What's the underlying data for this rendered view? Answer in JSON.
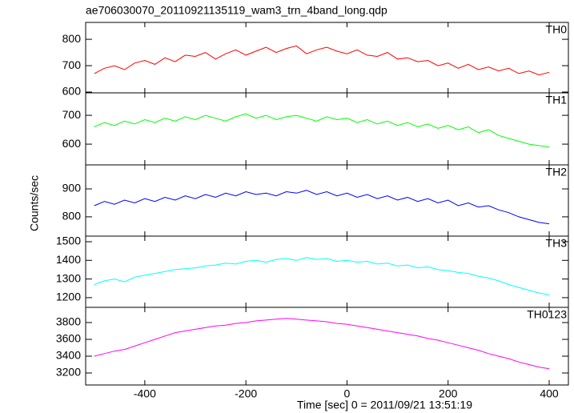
{
  "title": "ae706030070_20110921135119_wam3_trn_4band_long.qdp",
  "x_label": "Time [sec] 0 = 2011/09/21 13:51:19",
  "y_label": "Counts/sec",
  "chart_data": [
    {
      "type": "line",
      "xlim": [
        -517,
        438
      ],
      "xticks": [
        -400,
        -200,
        0,
        200,
        400
      ],
      "ylim": [
        597,
        864
      ],
      "yticks": [
        600,
        700,
        800
      ],
      "x": [
        -500,
        -480,
        -460,
        -440,
        -420,
        -400,
        -380,
        -360,
        -340,
        -320,
        -300,
        -280,
        -260,
        -240,
        -220,
        -200,
        -180,
        -160,
        -140,
        -120,
        -100,
        -80,
        -60,
        -40,
        -20,
        0,
        20,
        40,
        60,
        80,
        100,
        120,
        140,
        160,
        180,
        200,
        220,
        240,
        260,
        280,
        300,
        320,
        340,
        360,
        380,
        400
      ],
      "series": [
        {
          "name": "TH0",
          "color": "#ff0000",
          "values": [
            670,
            690,
            700,
            685,
            710,
            720,
            705,
            730,
            715,
            740,
            735,
            750,
            725,
            745,
            760,
            740,
            755,
            770,
            750,
            765,
            775,
            745,
            760,
            770,
            755,
            745,
            760,
            740,
            735,
            750,
            725,
            730,
            715,
            720,
            700,
            710,
            690,
            705,
            685,
            695,
            680,
            690,
            670,
            680,
            665,
            675
          ]
        }
      ]
    },
    {
      "type": "line",
      "xlim": [
        -517,
        438
      ],
      "xticks": [
        -400,
        -200,
        0,
        200,
        400
      ],
      "ylim": [
        528,
        778
      ],
      "yticks": [
        600,
        700
      ],
      "x": [
        -500,
        -480,
        -460,
        -440,
        -420,
        -400,
        -380,
        -360,
        -340,
        -320,
        -300,
        -280,
        -260,
        -240,
        -220,
        -200,
        -180,
        -160,
        -140,
        -120,
        -100,
        -80,
        -60,
        -40,
        -20,
        0,
        20,
        40,
        60,
        80,
        100,
        120,
        140,
        160,
        180,
        200,
        220,
        240,
        260,
        280,
        300,
        320,
        340,
        360,
        380,
        400
      ],
      "series": [
        {
          "name": "TH1",
          "color": "#00ff00",
          "values": [
            660,
            675,
            665,
            680,
            670,
            685,
            675,
            690,
            680,
            695,
            685,
            700,
            690,
            680,
            695,
            705,
            690,
            700,
            685,
            695,
            700,
            690,
            680,
            695,
            685,
            690,
            675,
            685,
            670,
            680,
            665,
            675,
            660,
            670,
            655,
            665,
            650,
            660,
            640,
            650,
            630,
            620,
            610,
            600,
            595,
            590
          ]
        }
      ]
    },
    {
      "type": "line",
      "xlim": [
        -517,
        438
      ],
      "xticks": [
        -400,
        -200,
        0,
        200,
        400
      ],
      "ylim": [
        731,
        986
      ],
      "yticks": [
        800,
        900
      ],
      "x": [
        -500,
        -480,
        -460,
        -440,
        -420,
        -400,
        -380,
        -360,
        -340,
        -320,
        -300,
        -280,
        -260,
        -240,
        -220,
        -200,
        -180,
        -160,
        -140,
        -120,
        -100,
        -80,
        -60,
        -40,
        -20,
        0,
        20,
        40,
        60,
        80,
        100,
        120,
        140,
        160,
        180,
        200,
        220,
        240,
        260,
        280,
        300,
        320,
        340,
        360,
        380,
        400
      ],
      "series": [
        {
          "name": "TH2",
          "color": "#0000ff",
          "values": [
            840,
            855,
            845,
            860,
            850,
            865,
            855,
            870,
            860,
            875,
            865,
            880,
            870,
            885,
            875,
            890,
            880,
            885,
            875,
            890,
            885,
            895,
            880,
            890,
            875,
            885,
            870,
            880,
            865,
            875,
            860,
            870,
            855,
            865,
            850,
            860,
            840,
            850,
            835,
            840,
            825,
            815,
            800,
            790,
            780,
            775
          ]
        }
      ]
    },
    {
      "type": "line",
      "xlim": [
        -517,
        438
      ],
      "xticks": [
        -400,
        -200,
        0,
        200,
        400
      ],
      "ylim": [
        1148,
        1530
      ],
      "yticks": [
        1200,
        1300,
        1400,
        1500
      ],
      "x": [
        -500,
        -480,
        -460,
        -440,
        -420,
        -400,
        -380,
        -360,
        -340,
        -320,
        -300,
        -280,
        -260,
        -240,
        -220,
        -200,
        -180,
        -160,
        -140,
        -120,
        -100,
        -80,
        -60,
        -40,
        -20,
        0,
        20,
        40,
        60,
        80,
        100,
        120,
        140,
        160,
        180,
        200,
        220,
        240,
        260,
        280,
        300,
        320,
        340,
        360,
        380,
        400
      ],
      "series": [
        {
          "name": "TH3",
          "color": "#00ffff",
          "values": [
            1270,
            1290,
            1300,
            1285,
            1310,
            1320,
            1330,
            1340,
            1350,
            1355,
            1360,
            1370,
            1375,
            1385,
            1380,
            1395,
            1400,
            1390,
            1405,
            1410,
            1400,
            1415,
            1405,
            1410,
            1395,
            1400,
            1390,
            1395,
            1380,
            1385,
            1370,
            1375,
            1360,
            1365,
            1350,
            1345,
            1335,
            1330,
            1315,
            1305,
            1290,
            1270,
            1255,
            1240,
            1225,
            1215
          ]
        }
      ]
    },
    {
      "type": "line",
      "xlim": [
        -517,
        438
      ],
      "xticks": [
        -400,
        -200,
        0,
        200,
        400
      ],
      "ylim": [
        3057,
        3981
      ],
      "yticks": [
        3200,
        3400,
        3600,
        3800
      ],
      "x": [
        -500,
        -480,
        -460,
        -440,
        -420,
        -400,
        -380,
        -360,
        -340,
        -320,
        -300,
        -280,
        -260,
        -240,
        -220,
        -200,
        -180,
        -160,
        -140,
        -120,
        -100,
        -80,
        -60,
        -40,
        -20,
        0,
        20,
        40,
        60,
        80,
        100,
        120,
        140,
        160,
        180,
        200,
        220,
        240,
        260,
        280,
        300,
        320,
        340,
        360,
        380,
        400
      ],
      "series": [
        {
          "name": "TH0123",
          "color": "#ff00ff",
          "values": [
            3400,
            3430,
            3460,
            3480,
            3520,
            3560,
            3600,
            3640,
            3680,
            3700,
            3720,
            3740,
            3760,
            3770,
            3790,
            3800,
            3820,
            3830,
            3840,
            3850,
            3840,
            3830,
            3820,
            3810,
            3790,
            3780,
            3760,
            3740,
            3720,
            3700,
            3680,
            3660,
            3640,
            3610,
            3590,
            3560,
            3530,
            3500,
            3470,
            3430,
            3400,
            3370,
            3330,
            3300,
            3270,
            3250
          ]
        }
      ]
    }
  ]
}
